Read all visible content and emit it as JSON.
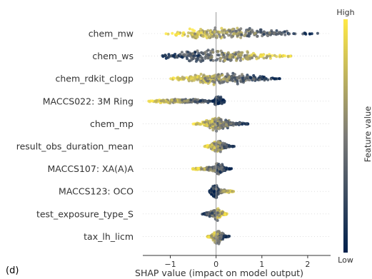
{
  "panel_label": "(d)",
  "chart_data": {
    "type": "scatter",
    "subtype": "shap-beeswarm",
    "xlabel": "SHAP value (impact on model output)",
    "xlim": [
      -1.6,
      2.5
    ],
    "xticks": [
      -1,
      0,
      1,
      2
    ],
    "xtick_labels": [
      "−1",
      "0",
      "1",
      "2"
    ],
    "colorbar": {
      "label": "Feature value",
      "high_label": "High",
      "low_label": "Low",
      "high_color": "#ffe945",
      "mid_color": "#7c7b78",
      "low_color": "#00204c"
    },
    "features": [
      {
        "name": "chem_mw",
        "min": -1.1,
        "max": 2.3,
        "low_side": "right",
        "spread": [
          [
            -1.1,
            0.15
          ],
          [
            -0.8,
            0.45
          ],
          [
            -0.5,
            0.7
          ],
          [
            -0.2,
            0.9
          ],
          [
            0.0,
            1.0
          ],
          [
            0.3,
            0.9
          ],
          [
            0.6,
            0.75
          ],
          [
            1.0,
            0.55
          ],
          [
            1.4,
            0.35
          ],
          [
            1.8,
            0.2
          ],
          [
            2.1,
            0.1
          ],
          [
            2.3,
            0.03
          ]
        ]
      },
      {
        "name": "chem_ws",
        "min": -1.3,
        "max": 1.7,
        "low_side": "left",
        "spread": [
          [
            -1.3,
            0.05
          ],
          [
            -1.1,
            0.3
          ],
          [
            -0.9,
            0.6
          ],
          [
            -0.6,
            0.85
          ],
          [
            -0.2,
            1.0
          ],
          [
            0.2,
            0.95
          ],
          [
            0.6,
            0.7
          ],
          [
            1.0,
            0.5
          ],
          [
            1.3,
            0.3
          ],
          [
            1.6,
            0.12
          ],
          [
            1.7,
            0.03
          ]
        ]
      },
      {
        "name": "chem_rdkit_clogp",
        "min": -1.0,
        "max": 1.4,
        "low_side": "right",
        "spread": [
          [
            -1.0,
            0.1
          ],
          [
            -0.7,
            0.35
          ],
          [
            -0.4,
            0.6
          ],
          [
            -0.1,
            0.85
          ],
          [
            0.1,
            1.0
          ],
          [
            0.4,
            0.8
          ],
          [
            0.7,
            0.55
          ],
          [
            1.0,
            0.35
          ],
          [
            1.3,
            0.12
          ],
          [
            1.4,
            0.04
          ]
        ]
      },
      {
        "name": "MACCS022: 3M Ring",
        "min": -1.5,
        "max": 0.2,
        "low_side": "right",
        "spread": [
          [
            -1.5,
            0.05
          ],
          [
            -1.3,
            0.25
          ],
          [
            -1.0,
            0.3
          ],
          [
            -0.6,
            0.3
          ],
          [
            -0.3,
            0.25
          ],
          [
            -0.05,
            0.15
          ],
          [
            0.0,
            0.8
          ],
          [
            0.1,
            0.6
          ],
          [
            0.2,
            0.1
          ]
        ]
      },
      {
        "name": "chem_mp",
        "min": -0.5,
        "max": 0.75,
        "low_side": "right",
        "spread": [
          [
            -0.5,
            0.05
          ],
          [
            -0.3,
            0.3
          ],
          [
            -0.1,
            0.7
          ],
          [
            0.0,
            1.0
          ],
          [
            0.15,
            0.7
          ],
          [
            0.35,
            0.4
          ],
          [
            0.55,
            0.15
          ],
          [
            0.75,
            0.03
          ]
        ]
      },
      {
        "name": "result_obs_duration_mean",
        "min": -0.25,
        "max": 0.42,
        "low_side": "right",
        "spread": [
          [
            -0.25,
            0.05
          ],
          [
            -0.12,
            0.3
          ],
          [
            -0.02,
            0.85
          ],
          [
            0.05,
            1.0
          ],
          [
            0.12,
            0.55
          ],
          [
            0.2,
            0.3
          ],
          [
            0.3,
            0.12
          ],
          [
            0.42,
            0.02
          ]
        ]
      },
      {
        "name": "MACCS107: XA(A)A",
        "min": -0.55,
        "max": 0.35,
        "low_side": "right",
        "spread": [
          [
            -0.55,
            0.05
          ],
          [
            -0.4,
            0.2
          ],
          [
            -0.2,
            0.25
          ],
          [
            -0.05,
            0.35
          ],
          [
            0.02,
            0.9
          ],
          [
            0.08,
            0.9
          ],
          [
            0.18,
            0.3
          ],
          [
            0.35,
            0.03
          ]
        ]
      },
      {
        "name": "MACCS123: OCO",
        "min": -0.15,
        "max": 0.4,
        "low_side": "left",
        "spread": [
          [
            -0.15,
            0.05
          ],
          [
            -0.05,
            0.9
          ],
          [
            0.0,
            1.0
          ],
          [
            0.08,
            0.25
          ],
          [
            0.2,
            0.2
          ],
          [
            0.35,
            0.12
          ],
          [
            0.4,
            0.02
          ]
        ]
      },
      {
        "name": "test_exposure_type_S",
        "min": -0.3,
        "max": 0.25,
        "low_side": "left",
        "spread": [
          [
            -0.3,
            0.05
          ],
          [
            -0.15,
            0.35
          ],
          [
            -0.05,
            0.55
          ],
          [
            0.02,
            0.9
          ],
          [
            0.08,
            0.7
          ],
          [
            0.15,
            0.3
          ],
          [
            0.25,
            0.03
          ]
        ]
      },
      {
        "name": "tax_lh_licm",
        "min": -0.2,
        "max": 0.3,
        "low_side": "right",
        "spread": [
          [
            -0.2,
            0.05
          ],
          [
            -0.1,
            0.3
          ],
          [
            0.0,
            0.9
          ],
          [
            0.05,
            1.0
          ],
          [
            0.12,
            0.6
          ],
          [
            0.2,
            0.25
          ],
          [
            0.3,
            0.03
          ]
        ]
      }
    ]
  }
}
